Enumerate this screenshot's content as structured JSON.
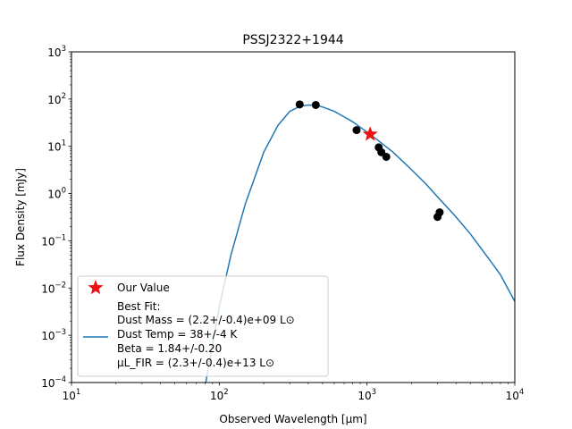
{
  "chart_data": {
    "type": "scatter",
    "title": "PSSJ2322+1944",
    "xlabel": "Observed Wavelength [μm]",
    "ylabel": "Flux Density [mJy]",
    "xscale": "log",
    "yscale": "log",
    "xlim": [
      10,
      10000
    ],
    "ylim": [
      0.0001,
      1000
    ],
    "x_tick_labels": [
      {
        "value": 10,
        "base": "10",
        "exp": "1"
      },
      {
        "value": 100,
        "base": "10",
        "exp": "2"
      },
      {
        "value": 1000,
        "base": "10",
        "exp": "3"
      },
      {
        "value": 10000,
        "base": "10",
        "exp": "4"
      }
    ],
    "y_tick_labels": [
      {
        "value": 0.0001,
        "base": "10",
        "exp": "−4"
      },
      {
        "value": 0.001,
        "base": "10",
        "exp": "−3"
      },
      {
        "value": 0.01,
        "base": "10",
        "exp": "−2"
      },
      {
        "value": 0.1,
        "base": "10",
        "exp": "−1"
      },
      {
        "value": 1,
        "base": "10",
        "exp": "0"
      },
      {
        "value": 10,
        "base": "10",
        "exp": "1"
      },
      {
        "value": 100,
        "base": "10",
        "exp": "2"
      },
      {
        "value": 1000,
        "base": "10",
        "exp": "3"
      }
    ],
    "observed_points": {
      "color": "#000000",
      "x": [
        350,
        450,
        850,
        1200,
        1250,
        1350,
        3000,
        3100
      ],
      "y": [
        77,
        75,
        22,
        9.5,
        7.5,
        6,
        0.32,
        0.4
      ]
    },
    "our_value": {
      "name": "Our Value",
      "color": "#ee1111",
      "x": 1050,
      "y": 18
    },
    "best_fit": {
      "color": "#1f77b4",
      "x": [
        80,
        90,
        100,
        120,
        150,
        200,
        250,
        300,
        350,
        400,
        450,
        500,
        600,
        700,
        800,
        1000,
        1200,
        1500,
        2000,
        2500,
        3000,
        4000,
        5000,
        6000,
        7000,
        8000,
        10000
      ],
      "y": [
        8e-05,
        0.00065,
        0.004,
        0.05,
        0.6,
        7.5,
        28,
        55,
        70,
        75,
        74,
        68,
        55,
        42,
        33,
        20,
        13,
        7.5,
        3.2,
        1.6,
        0.85,
        0.32,
        0.14,
        0.065,
        0.034,
        0.019,
        0.0052
      ]
    },
    "legend": {
      "placement": "lower-left",
      "our_value_label": "Our Value",
      "best_fit_lines": [
        "Best Fit:",
        "Dust Mass = (2.2+/-0.4)e+09 L⊙",
        "Dust Temp = 38+/-4 K",
        "Beta = 1.84+/-0.20",
        "μL_FIR = (2.3+/-0.4)e+13 L⊙"
      ]
    },
    "grid": false
  }
}
